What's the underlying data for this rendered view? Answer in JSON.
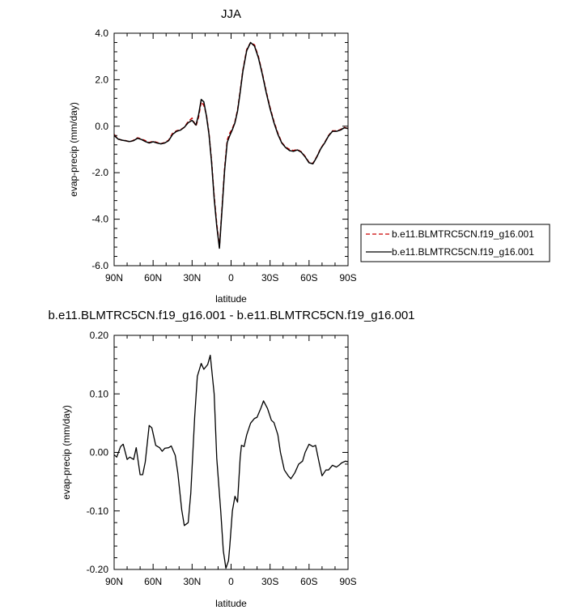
{
  "chart_data": [
    {
      "type": "line",
      "title": "JJA",
      "xlabel": "latitude",
      "ylabel": "evap-precip (mm/day)",
      "xlim": [
        90,
        -90
      ],
      "ylim": [
        -6.0,
        4.0
      ],
      "x_ticks": [
        90,
        60,
        30,
        0,
        -30,
        -60,
        -90
      ],
      "x_tick_labels": [
        "90N",
        "60N",
        "30N",
        "0",
        "30S",
        "60S",
        "90S"
      ],
      "y_ticks": [
        -6.0,
        -4.0,
        -2.0,
        0.0,
        2.0,
        4.0
      ],
      "y_tick_labels": [
        "-6.0",
        "-4.0",
        "-2.0",
        "0.0",
        "2.0",
        "4.0"
      ],
      "grid": false,
      "legend_position": "right",
      "x": [
        90,
        87,
        84,
        81,
        78,
        75,
        72,
        69,
        66,
        63,
        60,
        57,
        54,
        51,
        48,
        45,
        42,
        39,
        36,
        33,
        30,
        27,
        25,
        23,
        21,
        19,
        17,
        15,
        13,
        11,
        9,
        7,
        5,
        3,
        1,
        -1,
        -3,
        -5,
        -7,
        -9,
        -12,
        -15,
        -18,
        -21,
        -24,
        -27,
        -30,
        -33,
        -36,
        -39,
        -42,
        -45,
        -48,
        -51,
        -54,
        -57,
        -60,
        -63,
        -66,
        -69,
        -72,
        -75,
        -78,
        -81,
        -84,
        -87,
        -90
      ],
      "series": [
        {
          "name": "b.e11.BLMTRC5CN.f19_g16.001",
          "color": "#cc0000",
          "dash": "dashed",
          "values": [
            -0.35,
            -0.55,
            -0.6,
            -0.62,
            -0.68,
            -0.6,
            -0.5,
            -0.55,
            -0.62,
            -0.7,
            -0.65,
            -0.7,
            -0.75,
            -0.7,
            -0.6,
            -0.3,
            -0.2,
            -0.15,
            -0.05,
            0.2,
            0.35,
            0.0,
            0.4,
            1.05,
            0.9,
            0.5,
            -0.3,
            -1.5,
            -3.0,
            -4.2,
            -5.2,
            -3.5,
            -1.8,
            -0.6,
            -0.3,
            -0.1,
            0.2,
            0.7,
            1.5,
            2.4,
            3.3,
            3.6,
            3.5,
            3.0,
            2.3,
            1.5,
            0.8,
            0.2,
            -0.3,
            -0.7,
            -0.9,
            -1.0,
            -1.05,
            -1.0,
            -1.1,
            -1.3,
            -1.55,
            -1.6,
            -1.3,
            -0.95,
            -0.7,
            -0.4,
            -0.2,
            -0.2,
            -0.15,
            -0.05,
            -0.1
          ]
        },
        {
          "name": "b.e11.BLMTRC5CN.f19_g16.001",
          "color": "#000000",
          "dash": "solid",
          "values": [
            -0.4,
            -0.55,
            -0.6,
            -0.63,
            -0.66,
            -0.62,
            -0.52,
            -0.57,
            -0.66,
            -0.72,
            -0.67,
            -0.72,
            -0.76,
            -0.72,
            -0.62,
            -0.35,
            -0.22,
            -0.17,
            -0.05,
            0.15,
            0.25,
            0.05,
            0.5,
            1.15,
            1.05,
            0.45,
            -0.35,
            -1.55,
            -3.1,
            -4.3,
            -5.25,
            -3.6,
            -1.9,
            -0.7,
            -0.4,
            -0.15,
            0.15,
            0.65,
            1.45,
            2.35,
            3.25,
            3.6,
            3.45,
            2.95,
            2.25,
            1.45,
            0.75,
            0.15,
            -0.35,
            -0.72,
            -0.92,
            -1.05,
            -1.08,
            -1.02,
            -1.12,
            -1.32,
            -1.57,
            -1.62,
            -1.32,
            -0.97,
            -0.72,
            -0.42,
            -0.22,
            -0.22,
            -0.17,
            -0.07,
            -0.1
          ]
        }
      ]
    },
    {
      "type": "line",
      "title": "b.e11.BLMTRC5CN.f19_g16.001 - b.e11.BLMTRC5CN.f19_g16.001",
      "xlabel": "latitude",
      "ylabel": "evap-precip (mm/day)",
      "xlim": [
        90,
        -90
      ],
      "ylim": [
        -0.2,
        0.2
      ],
      "x_ticks": [
        90,
        60,
        30,
        0,
        -30,
        -60,
        -90
      ],
      "x_tick_labels": [
        "90N",
        "60N",
        "30N",
        "0",
        "30S",
        "60S",
        "90S"
      ],
      "y_ticks": [
        -0.2,
        -0.1,
        0.0,
        0.1,
        0.2
      ],
      "y_tick_labels": [
        "-0.20",
        "-0.10",
        "0.00",
        "0.10",
        "0.20"
      ],
      "grid": false,
      "x": [
        90,
        88,
        85,
        83,
        80,
        78,
        75,
        73,
        70,
        68,
        66,
        63,
        61,
        58,
        55,
        53,
        51,
        48,
        46,
        43,
        41,
        38,
        36,
        33,
        31,
        28,
        26,
        23,
        21,
        18,
        16,
        13,
        11,
        8,
        6,
        4,
        2,
        1,
        -1,
        -3,
        -5,
        -7,
        -8,
        -10,
        -12,
        -15,
        -18,
        -20,
        -23,
        -25,
        -28,
        -31,
        -33,
        -36,
        -38,
        -41,
        -44,
        -46,
        -49,
        -52,
        -55,
        -57,
        -60,
        -63,
        -65,
        -68,
        -70,
        -73,
        -75,
        -78,
        -81,
        -83,
        -85,
        -88,
        -90
      ],
      "series": [
        {
          "color": "#000000",
          "dash": "solid",
          "values": [
            -0.004,
            -0.008,
            0.01,
            0.014,
            -0.012,
            -0.008,
            -0.012,
            0.008,
            -0.038,
            -0.038,
            -0.016,
            0.046,
            0.042,
            0.012,
            0.008,
            0.002,
            0.007,
            0.008,
            0.011,
            -0.005,
            -0.035,
            -0.098,
            -0.125,
            -0.12,
            -0.07,
            0.06,
            0.13,
            0.152,
            0.142,
            0.15,
            0.166,
            0.1,
            -0.01,
            -0.1,
            -0.168,
            -0.198,
            -0.185,
            -0.16,
            -0.1,
            -0.075,
            -0.085,
            -0.01,
            0.012,
            0.01,
            0.03,
            0.05,
            0.058,
            0.06,
            0.076,
            0.088,
            0.075,
            0.055,
            0.051,
            0.03,
            0.0,
            -0.03,
            -0.04,
            -0.045,
            -0.035,
            -0.02,
            -0.015,
            0.0,
            0.014,
            0.01,
            0.012,
            -0.02,
            -0.04,
            -0.03,
            -0.03,
            -0.022,
            -0.025,
            -0.022,
            -0.018,
            -0.015,
            -0.016
          ]
        }
      ]
    }
  ]
}
